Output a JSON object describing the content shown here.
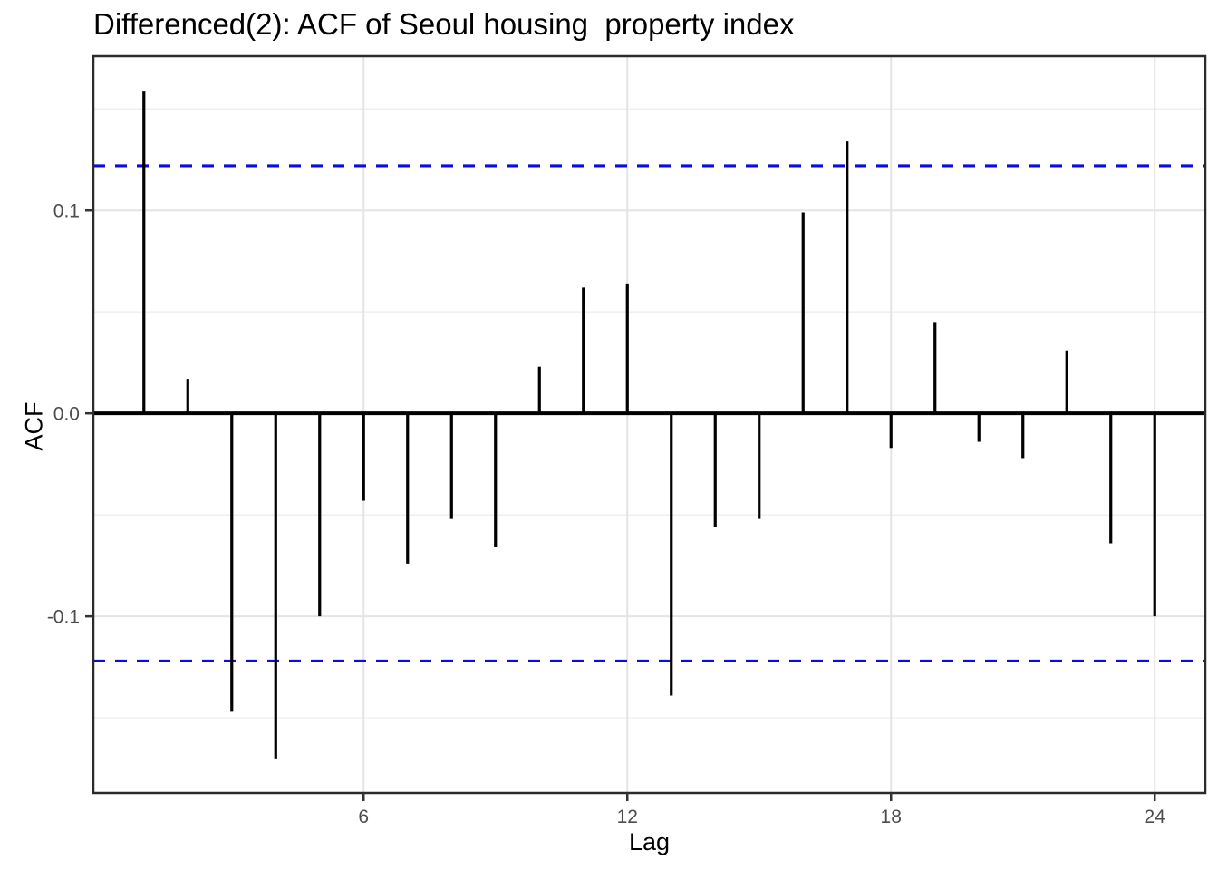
{
  "title": "Differenced(2): ACF of Seoul housing  property index",
  "chart_data": {
    "type": "bar",
    "subtype": "acf-stem-plot",
    "title": "Differenced(2): ACF of Seoul housing  property index",
    "xlabel": "Lag",
    "ylabel": "ACF",
    "x": [
      1,
      2,
      3,
      4,
      5,
      6,
      7,
      8,
      9,
      10,
      11,
      12,
      13,
      14,
      15,
      16,
      17,
      18,
      19,
      20,
      21,
      22,
      23,
      24
    ],
    "values": [
      0.159,
      0.017,
      -0.147,
      -0.17,
      -0.1,
      -0.043,
      -0.074,
      -0.052,
      -0.066,
      0.023,
      0.062,
      0.064,
      -0.139,
      -0.056,
      -0.052,
      0.099,
      0.134,
      -0.017,
      0.045,
      -0.014,
      -0.022,
      0.031,
      -0.064,
      -0.1
    ],
    "conf_upper": 0.122,
    "conf_lower": -0.122,
    "zero_line": 0.0,
    "xlim": [
      -0.15,
      25.15
    ],
    "ylim": [
      -0.187,
      0.176
    ],
    "x_ticks": [
      6,
      12,
      18,
      24
    ],
    "x_tick_labels": [
      "6",
      "12",
      "18",
      "24"
    ],
    "y_ticks": [
      0.1,
      0.0,
      -0.1
    ],
    "y_tick_labels": [
      "0.1",
      "0.0",
      "-0.1"
    ],
    "y_minor_grid": [
      0.15,
      0.05,
      -0.05,
      -0.15
    ],
    "grid": true,
    "legend": false,
    "colors": {
      "bar": "#000000",
      "conf_line": "#0b0bea",
      "zero_line": "#000000",
      "grid_major": "#e4e4e4",
      "grid_minor": "#f0f0f0",
      "panel_border": "#2b2b2b",
      "tick_mark": "#333333",
      "tick_label": "#4d4d4d",
      "title": "#000000",
      "background": "#ffffff"
    }
  }
}
